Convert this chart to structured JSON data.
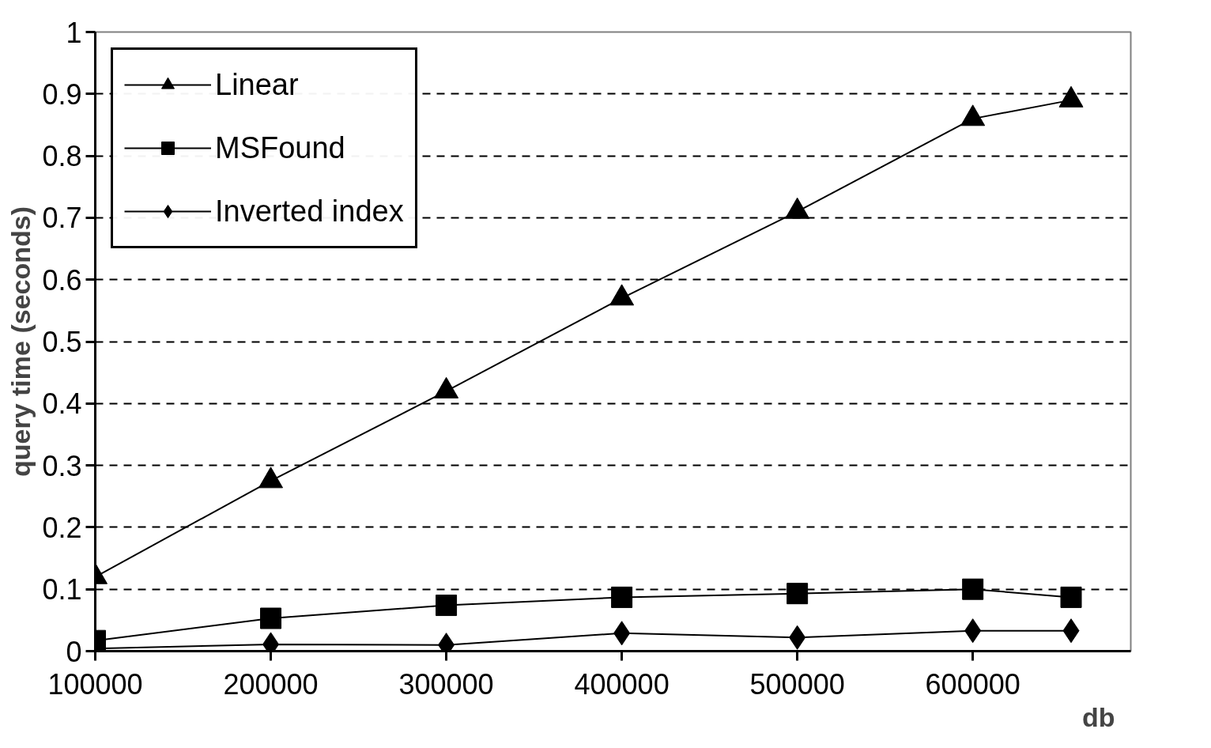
{
  "chart_data": {
    "type": "line",
    "xlabel": "db",
    "ylabel": "query time (seconds)",
    "x": [
      100000,
      200000,
      300000,
      400000,
      500000,
      600000,
      656000
    ],
    "xlim": [
      100000,
      690000
    ],
    "xticks": [
      100000,
      200000,
      300000,
      400000,
      500000,
      600000
    ],
    "ylim": [
      0,
      1
    ],
    "yticks": [
      0,
      0.1,
      0.2,
      0.3,
      0.4,
      0.5,
      0.6,
      0.7,
      0.8,
      0.9,
      1
    ],
    "grid": "y",
    "legend": "top left",
    "line_style": "solid",
    "series": [
      {
        "name": "Linear",
        "color": "#000000",
        "marker": "triangle",
        "values": [
          0.12,
          0.275,
          0.42,
          0.57,
          0.71,
          0.86,
          0.89
        ]
      },
      {
        "name": "MSFound",
        "color": "#000000",
        "marker": "square",
        "values": [
          0.017,
          0.053,
          0.074,
          0.087,
          0.093,
          0.1,
          0.087
        ]
      },
      {
        "name": "Inverted index",
        "color": "#000000",
        "marker": "diamond",
        "values": [
          0.004,
          0.011,
          0.01,
          0.029,
          0.022,
          0.033,
          0.033
        ]
      }
    ]
  }
}
